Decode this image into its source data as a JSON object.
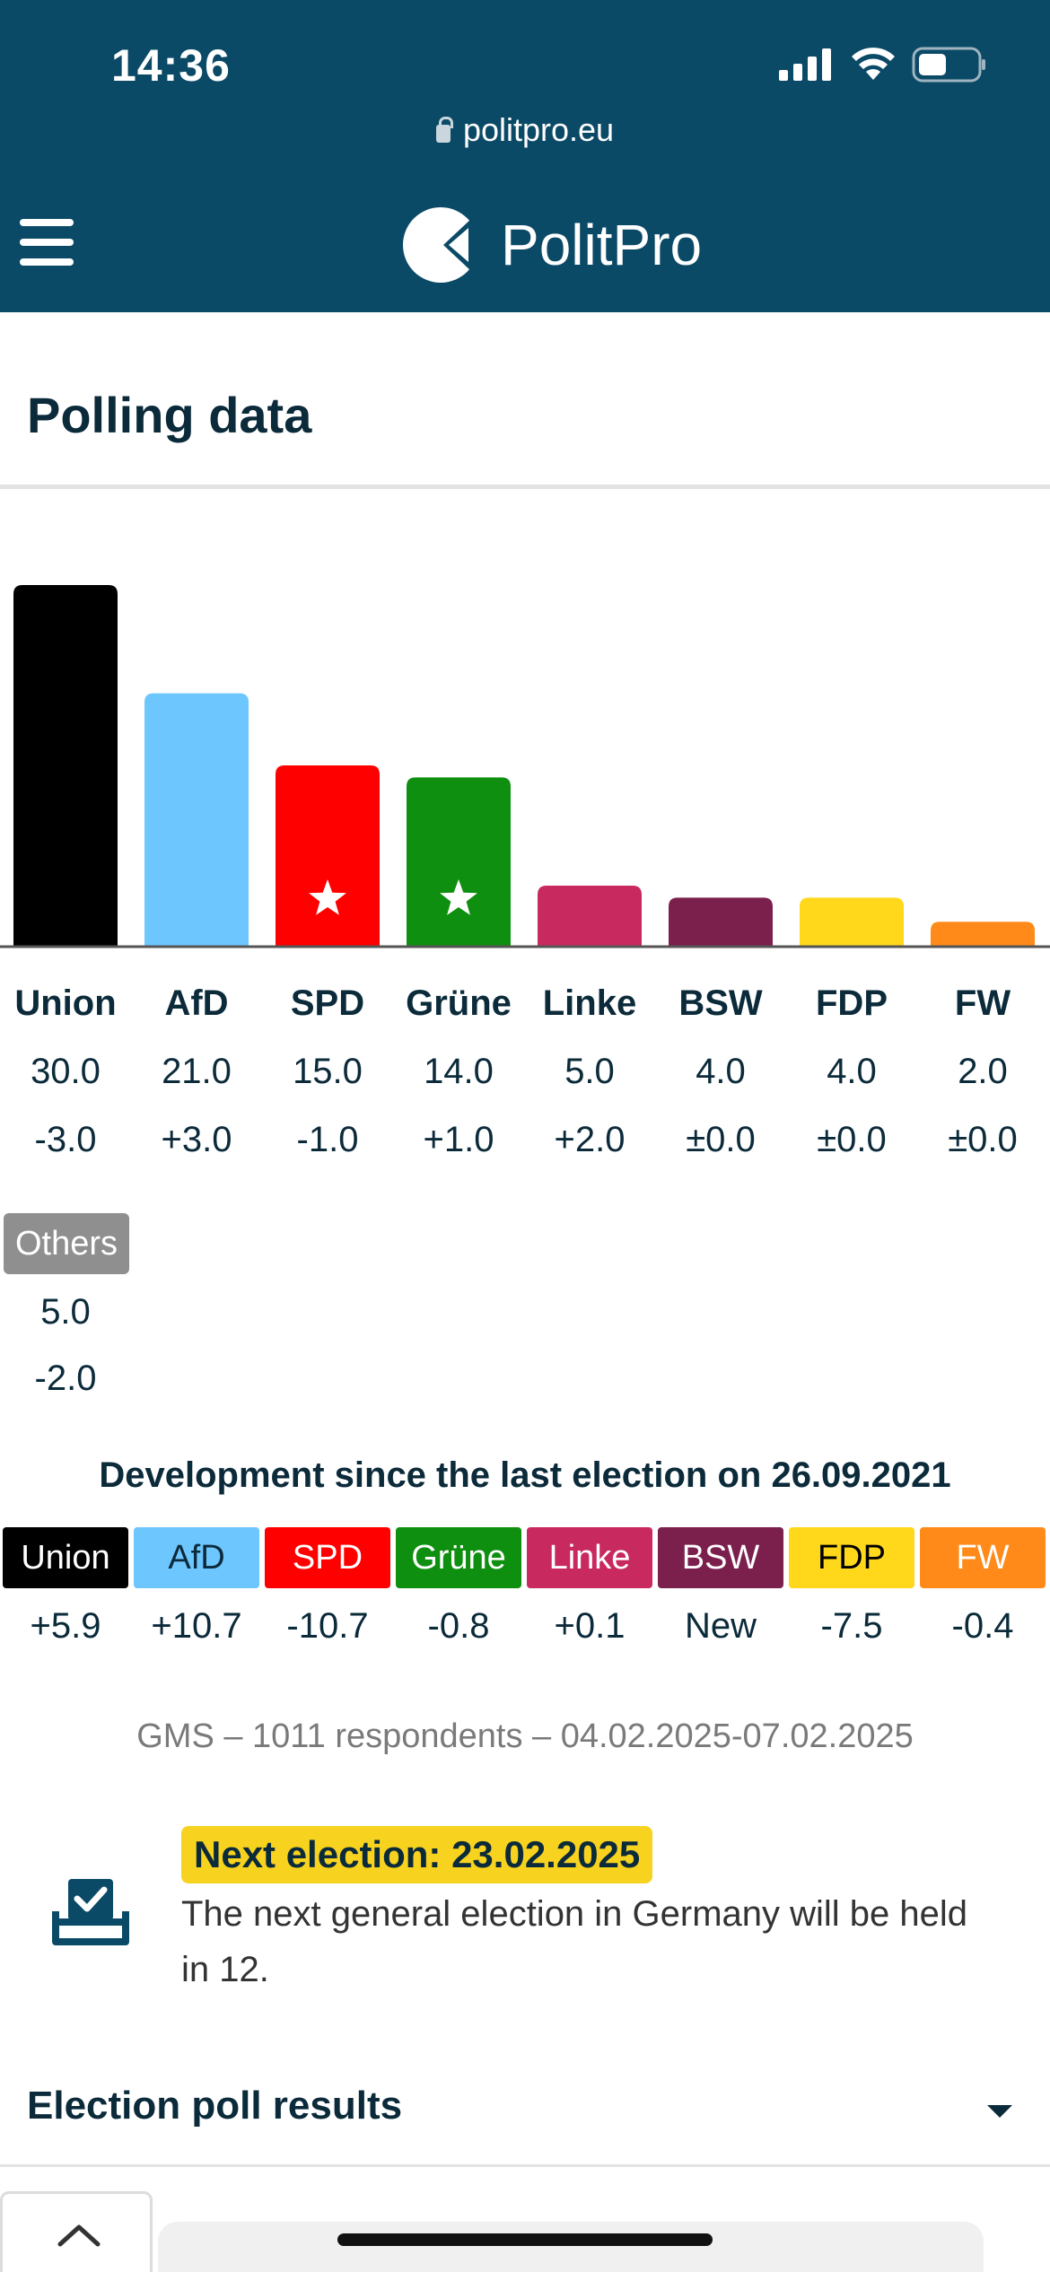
{
  "status_bar": {
    "time": "14:36"
  },
  "browser": {
    "url": "politpro.eu"
  },
  "brand": {
    "name": "PolitPro"
  },
  "page": {
    "title": "Polling data"
  },
  "colors": {
    "header": "#0b4a66",
    "Union": "#000000",
    "AfD": "#6ec6ff",
    "SPD": "#ff0000",
    "Grüne": "#0f8f0f",
    "Linke": "#c8295e",
    "BSW": "#7b1f4d",
    "FDP": "#ffd81b",
    "FW": "#ff8a19",
    "Others": "#8f8f8f"
  },
  "chart_data": {
    "type": "bar",
    "categories": [
      "Union",
      "AfD",
      "SPD",
      "Grüne",
      "Linke",
      "BSW",
      "FDP",
      "FW"
    ],
    "values": [
      30.0,
      21.0,
      15.0,
      14.0,
      5.0,
      4.0,
      4.0,
      2.0
    ],
    "values_text": [
      "30.0",
      "21.0",
      "15.0",
      "14.0",
      "5.0",
      "4.0",
      "4.0",
      "2.0"
    ],
    "changes_text": [
      "-3.0",
      "+3.0",
      "-1.0",
      "+1.0",
      "+2.0",
      "±0.0",
      "±0.0",
      "±0.0"
    ],
    "starred": [
      "SPD",
      "Grüne"
    ],
    "ylim": [
      0,
      30
    ],
    "others": {
      "label": "Others",
      "value": "5.0",
      "change": "-2.0"
    }
  },
  "development": {
    "title": "Development since the last election on 26.09.2021",
    "items": [
      {
        "party": "Union",
        "change": "+5.9"
      },
      {
        "party": "AfD",
        "change": "+10.7"
      },
      {
        "party": "SPD",
        "change": "-10.7"
      },
      {
        "party": "Grüne",
        "change": "-0.8"
      },
      {
        "party": "Linke",
        "change": "+0.1"
      },
      {
        "party": "BSW",
        "change": "New"
      },
      {
        "party": "FDP",
        "change": "-7.5"
      },
      {
        "party": "FW",
        "change": "-0.4"
      }
    ]
  },
  "source": {
    "text": "GMS – 1011 respondents – 04.02.2025-07.02.2025"
  },
  "election": {
    "badge": "Next election: 23.02.2025",
    "text": "The next general election in Germany will be held in 12."
  },
  "accordion": {
    "title": "Election poll results"
  }
}
